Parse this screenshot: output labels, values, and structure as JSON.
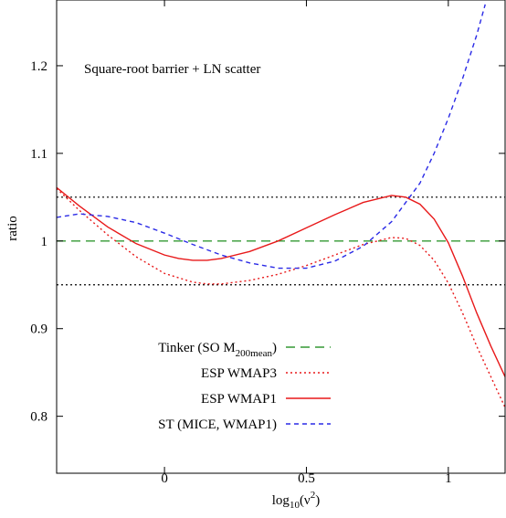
{
  "chart_data": {
    "type": "line",
    "annotation": "Square-root barrier + LN scatter",
    "xlabel": {
      "base": "log",
      "sub": "10",
      "mid": "(ν",
      "sup": "2",
      "end": ")"
    },
    "ylabel": "ratio",
    "xlim": [
      -0.38,
      1.2
    ],
    "ylim": [
      0.735,
      1.275
    ],
    "xticks": [
      {
        "value": 0,
        "label": "0"
      },
      {
        "value": 0.5,
        "label": "0.5"
      },
      {
        "value": 1,
        "label": "1"
      }
    ],
    "yticks": [
      {
        "value": 0.8,
        "label": "0.8"
      },
      {
        "value": 0.9,
        "label": "0.9"
      },
      {
        "value": 1.0,
        "label": "1"
      },
      {
        "value": 1.1,
        "label": "1.1"
      },
      {
        "value": 1.2,
        "label": "1.2"
      }
    ],
    "reference_lines": [
      {
        "y": 1.05,
        "color": "#000000",
        "style": "dotted"
      },
      {
        "y": 0.95,
        "color": "#000000",
        "style": "dotted"
      }
    ],
    "series": [
      {
        "name": "Tinker (SO M",
        "name_sub": "200mean",
        "name_end": ")",
        "color": "#339933",
        "style": "long-dash",
        "x": [
          -0.38,
          1.2
        ],
        "y": [
          1.0,
          1.0
        ]
      },
      {
        "name": "ESP WMAP3",
        "color": "#e8191a",
        "style": "dotted",
        "x": [
          -0.38,
          -0.3,
          -0.2,
          -0.1,
          0.0,
          0.1,
          0.15,
          0.2,
          0.3,
          0.4,
          0.5,
          0.6,
          0.7,
          0.75,
          0.8,
          0.85,
          0.9,
          0.95,
          1.0,
          1.05,
          1.1,
          1.15,
          1.2
        ],
        "y": [
          1.06,
          1.035,
          1.007,
          0.982,
          0.963,
          0.953,
          0.951,
          0.951,
          0.955,
          0.962,
          0.972,
          0.984,
          0.996,
          1.0,
          1.004,
          1.003,
          0.995,
          0.978,
          0.952,
          0.918,
          0.88,
          0.845,
          0.81
        ]
      },
      {
        "name": "ESP WMAP1",
        "color": "#e8191a",
        "style": "solid",
        "x": [
          -0.38,
          -0.3,
          -0.2,
          -0.1,
          0.0,
          0.05,
          0.1,
          0.15,
          0.2,
          0.3,
          0.4,
          0.5,
          0.6,
          0.7,
          0.8,
          0.85,
          0.9,
          0.95,
          1.0,
          1.05,
          1.1,
          1.15,
          1.2
        ],
        "y": [
          1.061,
          1.04,
          1.016,
          0.997,
          0.984,
          0.98,
          0.978,
          0.978,
          0.98,
          0.988,
          1.0,
          1.015,
          1.03,
          1.044,
          1.052,
          1.05,
          1.042,
          1.025,
          0.998,
          0.96,
          0.918,
          0.88,
          0.845
        ]
      },
      {
        "name": "ST (MICE, WMAP1)",
        "color": "#2a2ae6",
        "style": "dashed",
        "x": [
          -0.38,
          -0.3,
          -0.2,
          -0.1,
          0.0,
          0.1,
          0.2,
          0.3,
          0.4,
          0.5,
          0.6,
          0.7,
          0.8,
          0.9,
          0.95,
          1.0,
          1.05,
          1.1,
          1.13
        ],
        "y": [
          1.027,
          1.031,
          1.028,
          1.021,
          1.009,
          0.996,
          0.984,
          0.975,
          0.969,
          0.969,
          0.977,
          0.994,
          1.022,
          1.066,
          1.1,
          1.14,
          1.185,
          1.235,
          1.27
        ]
      }
    ]
  }
}
